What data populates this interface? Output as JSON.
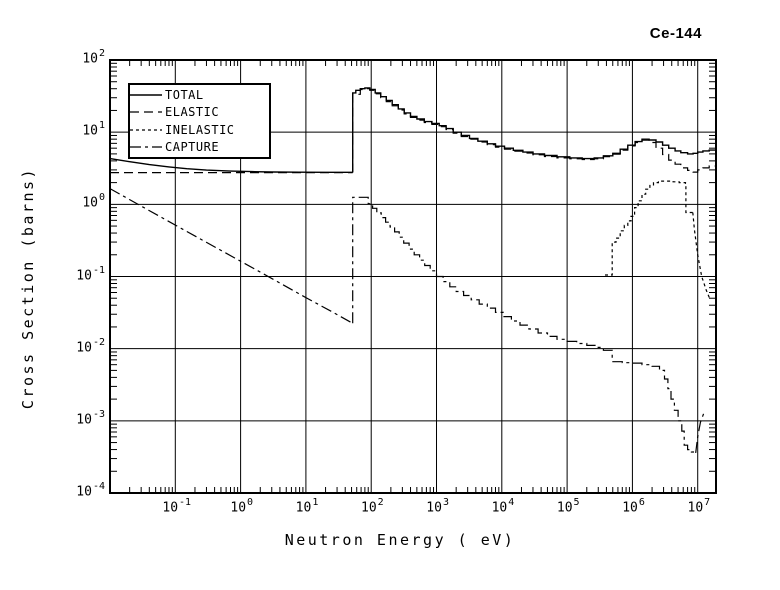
{
  "title": "Ce-144",
  "chart_data": {
    "type": "line",
    "title": "Ce-144",
    "xlabel": "Neutron Energy (  eV)",
    "ylabel": "Cross Section (barns)",
    "xscale": "log",
    "yscale": "log",
    "xlim": [
      0.01,
      19000000
    ],
    "ylim": [
      0.0001,
      100
    ],
    "x_log_range": [
      -2,
      7.28
    ],
    "y_log_range": [
      -4,
      2
    ],
    "x_tick_exponents": [
      -1,
      0,
      1,
      2,
      3,
      4,
      5,
      6,
      7
    ],
    "y_tick_exponents": [
      2,
      1,
      0,
      -1,
      -2,
      -3,
      -4
    ],
    "grid": true,
    "legend_position": "top-left",
    "units": "barns vs eV",
    "foreground": "#000000",
    "background": "#ffffff",
    "series": [
      {
        "name": "TOTAL",
        "dash": "",
        "width": 1.4,
        "segments": [
          {
            "mode": "linear",
            "points": [
              [
                0.01,
                4.3
              ],
              [
                0.02,
                3.9
              ],
              [
                0.04,
                3.55
              ],
              [
                0.08,
                3.3
              ],
              [
                0.15,
                3.12
              ],
              [
                0.3,
                2.98
              ],
              [
                0.7,
                2.89
              ],
              [
                1.5,
                2.84
              ],
              [
                3,
                2.81
              ],
              [
                8,
                2.79
              ],
              [
                20,
                2.78
              ],
              [
                52,
                2.78
              ]
            ]
          },
          {
            "mode": "step",
            "points": [
              [
                52,
                2.78
              ],
              [
                52,
                35
              ],
              [
                58,
                38
              ],
              [
                68,
                40
              ],
              [
                80,
                41
              ],
              [
                95,
                39
              ],
              [
                115,
                35
              ],
              [
                140,
                31
              ],
              [
                170,
                27.5
              ],
              [
                210,
                24
              ],
              [
                260,
                21
              ],
              [
                320,
                18.5
              ],
              [
                400,
                16.5
              ],
              [
                500,
                15.2
              ],
              [
                650,
                14
              ],
              [
                850,
                13.2
              ],
              [
                1100,
                12.3
              ],
              [
                1400,
                11.2
              ],
              [
                1800,
                10
              ],
              [
                2400,
                9
              ],
              [
                3200,
                8.2
              ],
              [
                4300,
                7.5
              ],
              [
                6000,
                6.9
              ],
              [
                8000,
                6.4
              ],
              [
                11000,
                6.0
              ],
              [
                15000,
                5.6
              ],
              [
                21000,
                5.3
              ],
              [
                30000,
                5.0
              ],
              [
                45000,
                4.75
              ],
              [
                70000,
                4.55
              ],
              [
                110000,
                4.4
              ],
              [
                170000,
                4.3
              ],
              [
                260000,
                4.4
              ],
              [
                360000,
                4.7
              ],
              [
                500000,
                5.1
              ],
              [
                650000,
                5.8
              ],
              [
                850000,
                6.6
              ],
              [
                1100000,
                7.4
              ],
              [
                1400000,
                8.0
              ],
              [
                1800000,
                7.8
              ],
              [
                2300000,
                7.3
              ],
              [
                2900000,
                6.6
              ],
              [
                3600000,
                6.0
              ],
              [
                4500000,
                5.5
              ],
              [
                5500000,
                5.2
              ],
              [
                7000000,
                5.0
              ],
              [
                8500000,
                5.1
              ],
              [
                10000000,
                5.3
              ],
              [
                12000000,
                5.5
              ],
              [
                15000000,
                5.65
              ],
              [
                19000000,
                5.7
              ]
            ]
          }
        ]
      },
      {
        "name": "ELASTIC",
        "dash": "9 5",
        "width": 1.2,
        "segments": [
          {
            "mode": "linear",
            "points": [
              [
                0.01,
                2.75
              ],
              [
                52,
                2.75
              ]
            ]
          },
          {
            "mode": "step",
            "points": [
              [
                52,
                2.75
              ],
              [
                52,
                33.5
              ],
              [
                68,
                39
              ],
              [
                80,
                40
              ],
              [
                95,
                38
              ],
              [
                115,
                34
              ],
              [
                140,
                30
              ],
              [
                170,
                26.5
              ],
              [
                210,
                23.2
              ],
              [
                260,
                20.3
              ],
              [
                320,
                17.9
              ],
              [
                400,
                16
              ],
              [
                500,
                14.7
              ],
              [
                650,
                13.6
              ],
              [
                850,
                12.8
              ],
              [
                1100,
                11.9
              ],
              [
                1400,
                10.9
              ],
              [
                1800,
                9.7
              ],
              [
                2400,
                8.7
              ],
              [
                3200,
                8.0
              ],
              [
                4300,
                7.3
              ],
              [
                6000,
                6.7
              ],
              [
                8000,
                6.2
              ],
              [
                11000,
                5.8
              ],
              [
                15000,
                5.45
              ],
              [
                21000,
                5.15
              ],
              [
                30000,
                4.85
              ],
              [
                45000,
                4.6
              ],
              [
                70000,
                4.4
              ],
              [
                110000,
                4.27
              ],
              [
                170000,
                4.18
              ],
              [
                260000,
                4.28
              ],
              [
                360000,
                4.58
              ],
              [
                500000,
                4.97
              ],
              [
                650000,
                5.65
              ],
              [
                850000,
                6.45
              ],
              [
                1100000,
                7.2
              ],
              [
                1400000,
                7.75
              ],
              [
                1800000,
                7.2
              ],
              [
                2300000,
                6.0
              ],
              [
                2900000,
                4.9
              ],
              [
                3600000,
                4.1
              ],
              [
                4500000,
                3.6
              ],
              [
                5500000,
                3.2
              ],
              [
                7000000,
                2.95
              ],
              [
                8500000,
                2.8
              ],
              [
                10000000,
                3.0
              ],
              [
                12000000,
                3.2
              ],
              [
                15000000,
                3.4
              ],
              [
                19000000,
                3.5
              ]
            ]
          }
        ]
      },
      {
        "name": "INELASTIC",
        "dash": "3 3",
        "width": 1.2,
        "segments": [
          {
            "mode": "step",
            "points": [
              [
                380000,
                0.105
              ],
              [
                490000,
                0.3
              ],
              [
                560000,
                0.34
              ],
              [
                650000,
                0.43
              ],
              [
                750000,
                0.51
              ],
              [
                850000,
                0.59
              ],
              [
                950000,
                0.68
              ],
              [
                1080000,
                0.9
              ],
              [
                1220000,
                1.12
              ],
              [
                1400000,
                1.38
              ],
              [
                1600000,
                1.62
              ],
              [
                1850000,
                1.86
              ],
              [
                2100000,
                2.0
              ],
              [
                2500000,
                2.1
              ],
              [
                3200000,
                2.1
              ],
              [
                4200000,
                2.05
              ],
              [
                5200000,
                2.0
              ],
              [
                6500000,
                1.95
              ],
              [
                6600000,
                0.77
              ],
              [
                8400000,
                0.77
              ]
            ]
          },
          {
            "mode": "linear",
            "points": [
              [
                8400000,
                0.77
              ],
              [
                8900000,
                0.45
              ],
              [
                10000000,
                0.2
              ],
              [
                11500000,
                0.1
              ],
              [
                13500000,
                0.065
              ],
              [
                15500000,
                0.048
              ]
            ]
          }
        ]
      },
      {
        "name": "CAPTURE",
        "dash": "11 4 3 4",
        "width": 1.2,
        "segments": [
          {
            "mode": "linear",
            "points": [
              [
                0.01,
                1.65
              ],
              [
                0.04,
                0.82
              ],
              [
                0.15,
                0.42
              ],
              [
                0.6,
                0.21
              ],
              [
                2.5,
                0.103
              ],
              [
                10,
                0.051
              ],
              [
                25,
                0.0325
              ],
              [
                52,
                0.0225
              ]
            ]
          },
          {
            "mode": "step",
            "points": [
              [
                52,
                0.0225
              ],
              [
                52,
                1.25
              ],
              [
                83,
                1.25
              ],
              [
                90,
                1.02
              ],
              [
                105,
                0.88
              ],
              [
                122,
                0.76
              ],
              [
                142,
                0.655
              ],
              [
                166,
                0.565
              ],
              [
                195,
                0.485
              ],
              [
                228,
                0.415
              ],
              [
                268,
                0.35
              ],
              [
                315,
                0.29
              ],
              [
                380,
                0.24
              ],
              [
                455,
                0.2
              ],
              [
                550,
                0.168
              ],
              [
                660,
                0.142
              ],
              [
                800,
                0.12
              ],
              [
                1000,
                0.1
              ],
              [
                1260,
                0.085
              ],
              [
                1600,
                0.072
              ],
              [
                2000,
                0.062
              ],
              [
                2600,
                0.0545
              ],
              [
                3400,
                0.0475
              ],
              [
                4500,
                0.0415
              ],
              [
                6000,
                0.0365
              ],
              [
                8000,
                0.0318
              ],
              [
                10500,
                0.0278
              ],
              [
                14000,
                0.0242
              ],
              [
                19000,
                0.0212
              ],
              [
                26000,
                0.0187
              ],
              [
                36000,
                0.0165
              ],
              [
                50000,
                0.0148
              ],
              [
                70000,
                0.0135
              ],
              [
                100000,
                0.0126
              ],
              [
                140000,
                0.0118
              ],
              [
                200000,
                0.0111
              ],
              [
                280000,
                0.0104
              ],
              [
                360000,
                0.0095
              ],
              [
                490000,
                0.0066
              ],
              [
                700000,
                0.0064
              ],
              [
                1000000,
                0.0063
              ],
              [
                1400000,
                0.006
              ],
              [
                2000000,
                0.0057
              ],
              [
                2600000,
                0.005
              ],
              [
                3100000,
                0.0038
              ],
              [
                3500000,
                0.0028
              ],
              [
                3900000,
                0.002
              ],
              [
                4400000,
                0.0014
              ],
              [
                5000000,
                0.001
              ],
              [
                5700000,
                0.00072
              ],
              [
                6200000,
                0.00046
              ],
              [
                7000000,
                0.0004
              ],
              [
                8000000,
                0.00037
              ],
              [
                9300000,
                0.00036
              ]
            ]
          },
          {
            "mode": "linear",
            "points": [
              [
                9300000,
                0.00036
              ],
              [
                10000000,
                0.0006
              ],
              [
                11000000,
                0.00095
              ],
              [
                12500000,
                0.0013
              ]
            ]
          }
        ]
      }
    ]
  }
}
